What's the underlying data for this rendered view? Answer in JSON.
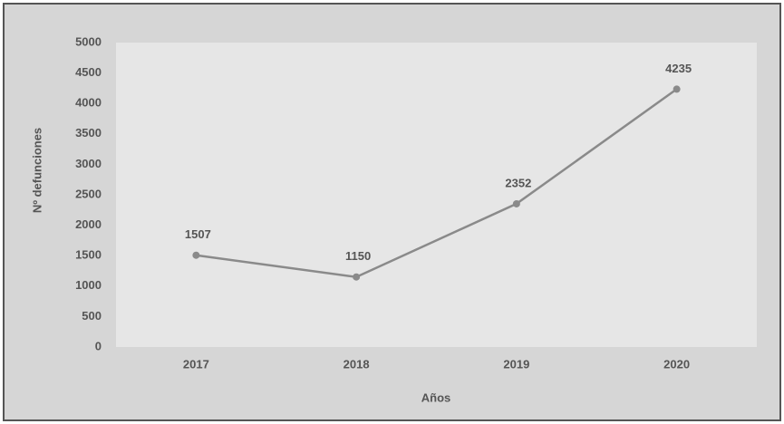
{
  "chart_data": {
    "type": "line",
    "categories": [
      "2017",
      "2018",
      "2019",
      "2020"
    ],
    "series": [
      {
        "name": "Nº defunciones",
        "color": "#8a8a8a",
        "values": [
          1507,
          1150,
          2352,
          4235
        ]
      }
    ],
    "ylabel": "Nº defunciones",
    "xlabel": "Años",
    "ylim": [
      0,
      5000
    ],
    "yticks": [
      0,
      500,
      1000,
      1500,
      2000,
      2500,
      3000,
      3500,
      4000,
      4500,
      5000
    ],
    "grid": false,
    "data_labels": true
  }
}
